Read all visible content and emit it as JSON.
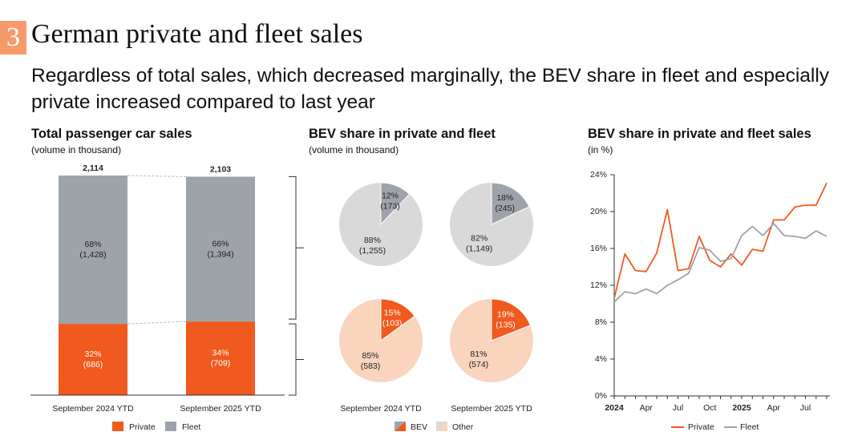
{
  "header": {
    "section_number": "3",
    "title": "German private and fleet sales",
    "subtitle": "Regardless of total sales, which decreased marginally, the BEV share in fleet and especially private increased compared to last year"
  },
  "colors": {
    "private": "#f05a1e",
    "fleet": "#9ea3aa",
    "other_private": "#fbd4bd",
    "other_fleet": "#d9d9d9",
    "bev_fleet": "#9ea3aa"
  },
  "chart_data": [
    {
      "type": "bar",
      "title": "Total passenger car sales",
      "subtitle": "(volume in thousand)",
      "categories": [
        "September 2024 YTD",
        "September 2025 YTD"
      ],
      "totals": [
        "2,114",
        "2,103"
      ],
      "series": [
        {
          "name": "Private",
          "values": [
            686,
            709
          ],
          "labels": [
            "32%\n(686)",
            "34%\n(709)"
          ]
        },
        {
          "name": "Fleet",
          "values": [
            1428,
            1394
          ],
          "labels": [
            "68%\n(1,428)",
            "66%\n(1,394)"
          ]
        }
      ],
      "legend": [
        "Private",
        "Fleet"
      ]
    },
    {
      "type": "pie",
      "title": "BEV share in private and fleet",
      "subtitle": "(volume in thousand)",
      "categories": [
        "September 2024 YTD",
        "September 2025 YTD"
      ],
      "pies": [
        {
          "row": "fleet",
          "col": 0,
          "bev_pct": 12,
          "bev_label": "12%\n(173)",
          "other_label": "88%\n(1,255)"
        },
        {
          "row": "fleet",
          "col": 1,
          "bev_pct": 18,
          "bev_label": "18%\n(245)",
          "other_label": "82%\n(1,149)"
        },
        {
          "row": "private",
          "col": 0,
          "bev_pct": 15,
          "bev_label": "15%\n(103)",
          "other_label": "85%\n(583)"
        },
        {
          "row": "private",
          "col": 1,
          "bev_pct": 19,
          "bev_label": "19%\n(135)",
          "other_label": "81%\n(574)"
        }
      ],
      "legend": [
        "BEV",
        "Other"
      ]
    },
    {
      "type": "line",
      "title": "BEV share in private and fleet sales",
      "subtitle": "(in %)",
      "ylim": [
        0,
        24
      ],
      "yticks": [
        0,
        4,
        8,
        12,
        16,
        20,
        24
      ],
      "ytick_labels": [
        "0%",
        "4%",
        "8%",
        "12%",
        "16%",
        "20%",
        "24%"
      ],
      "xtick_positions": [
        0,
        3,
        6,
        9,
        12,
        15,
        18
      ],
      "xtick_labels": [
        "2024",
        "Apr",
        "Jul",
        "Oct",
        "2025",
        "Apr",
        "Jul"
      ],
      "n_points": 21,
      "series": [
        {
          "name": "Private",
          "values": [
            10.6,
            15.4,
            13.6,
            13.5,
            15.5,
            20.2,
            13.6,
            13.8,
            17.3,
            14.7,
            14.0,
            15.4,
            14.2,
            15.9,
            15.7,
            19.1,
            19.1,
            20.5,
            20.7,
            20.7,
            23.1
          ]
        },
        {
          "name": "Fleet",
          "values": [
            10.2,
            11.3,
            11.1,
            11.6,
            11.1,
            12.0,
            12.6,
            13.3,
            16.1,
            15.8,
            14.6,
            14.9,
            17.4,
            18.4,
            17.4,
            18.7,
            17.4,
            17.3,
            17.1,
            17.9,
            17.3
          ]
        }
      ],
      "legend": [
        "Private",
        "Fleet"
      ]
    }
  ]
}
